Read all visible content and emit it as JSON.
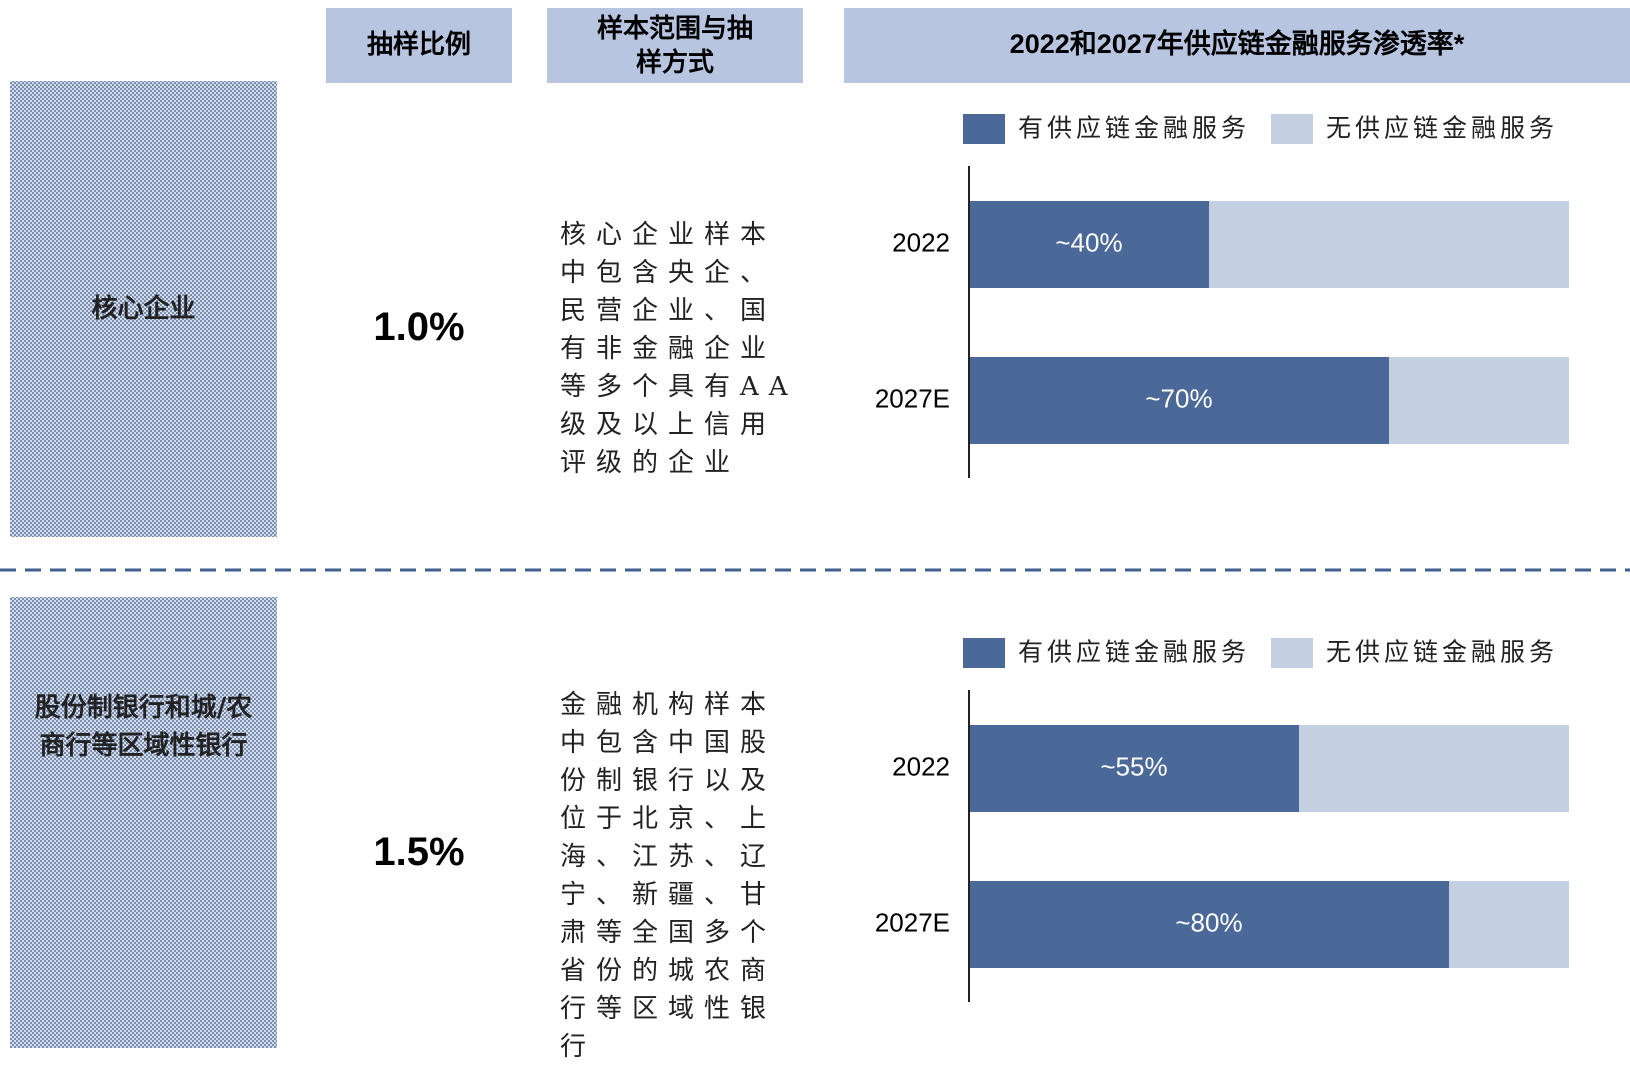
{
  "header": {
    "ratio": "抽样比例",
    "scope": "样本范围与抽样方式",
    "chart_title": "2022和2027年供应链金融服务渗透率*"
  },
  "rows": [
    {
      "segment": "核心企业",
      "ratio": "1.0%",
      "description": "核心企业样本中包含央企、民营企业、国有非金融企业等多个具有AA级及以上信用评级的企业"
    },
    {
      "segment": "股份制银行和城/农商行等区域性银行",
      "ratio": "1.5%",
      "description": "金融机构样本中包含中国股份制银行以及位于北京、上海、江苏、辽宁、新疆、甘肃等全国多个省份的城农商行等区域性银行"
    }
  ],
  "chart_data": [
    {
      "type": "bar",
      "orientation": "horizontal",
      "stacked": true,
      "categories": [
        "2022",
        "2027E"
      ],
      "xlim": [
        0,
        100
      ],
      "series": [
        {
          "name": "有供应链金融服务",
          "color": "#4a6898",
          "values": [
            40,
            70
          ],
          "value_labels": [
            "~40%",
            "~70%"
          ]
        },
        {
          "name": "无供应链金融服务",
          "color": "#c5cfe2",
          "values": [
            60,
            30
          ]
        }
      ]
    },
    {
      "type": "bar",
      "orientation": "horizontal",
      "stacked": true,
      "categories": [
        "2022",
        "2027E"
      ],
      "xlim": [
        0,
        100
      ],
      "series": [
        {
          "name": "有供应链金融服务",
          "color": "#4a6898",
          "values": [
            55,
            80
          ],
          "value_labels": [
            "~55%",
            "~80%"
          ]
        },
        {
          "name": "无供应链金融服务",
          "color": "#c5cfe2",
          "values": [
            45,
            20
          ]
        }
      ]
    }
  ]
}
